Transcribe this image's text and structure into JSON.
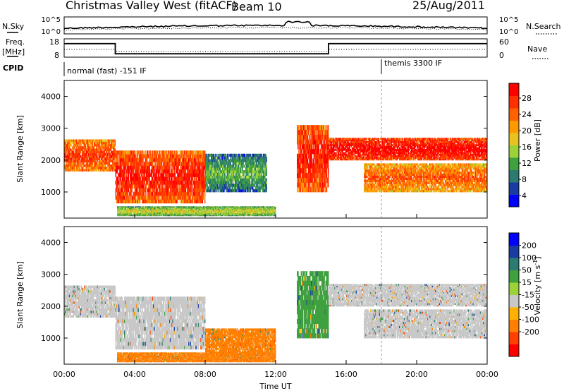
{
  "header": {
    "station": "Christmas Valley West (fitACF)",
    "beam": "Beam 10",
    "date": "25/Aug/2011"
  },
  "noise_panel": {
    "left_label": "N.Sky",
    "right_label": "N.Search",
    "left_ticks": [
      "10^5",
      "10^0"
    ],
    "right_ticks": [
      "10^5",
      "10^0"
    ]
  },
  "freq_panel": {
    "left_label": "Freq.",
    "left_unit": "[MHz]",
    "right_label": "Nave",
    "left_ticks": [
      "18",
      "8"
    ],
    "right_ticks": [
      "60",
      "0"
    ],
    "freq_steps": [
      {
        "start_hour": 0,
        "end_hour": 2.9,
        "freq_mhz": 16
      },
      {
        "start_hour": 2.9,
        "end_hour": 15.0,
        "freq_mhz": 10
      },
      {
        "start_hour": 15.0,
        "end_hour": 24,
        "freq_mhz": 16
      }
    ]
  },
  "cpid": {
    "label": "CPID",
    "modes": [
      {
        "start_hour": 0,
        "text": "normal (fast) -151 IF"
      },
      {
        "start_hour": 18,
        "text": "themis 3300 IF"
      }
    ]
  },
  "chart_data": [
    {
      "type": "heatmap",
      "name": "power",
      "ylabel": "Slant Range [km]",
      "xlabel": "Time UT",
      "x_ticks": [
        "00:00",
        "04:00",
        "08:00",
        "12:00",
        "16:00",
        "20:00",
        "00:00"
      ],
      "xlim_hours": [
        0,
        24
      ],
      "ylim_km": [
        180,
        4500
      ],
      "y_ticks": [
        1000,
        2000,
        3000,
        4000
      ],
      "colorbar": {
        "label": "Power [dB]",
        "ticks": [
          "28",
          "24",
          "20",
          "16",
          "12",
          "8",
          "4"
        ],
        "range": [
          0,
          30
        ],
        "colors": [
          "#0000ff",
          "#1a3ca0",
          "#2d7a70",
          "#3fa03f",
          "#9bd23a",
          "#e8c21e",
          "#ff9900",
          "#ff6000",
          "#ff3000",
          "#ff0000"
        ]
      },
      "regions": [
        {
          "t0": 0.0,
          "t1": 2.9,
          "r0": 1650,
          "r1": 2650,
          "value": 24
        },
        {
          "t0": 2.9,
          "t1": 8.0,
          "r0": 650,
          "r1": 2300,
          "value": 26
        },
        {
          "t0": 8.0,
          "t1": 11.5,
          "r0": 1000,
          "r1": 2200,
          "value": 10
        },
        {
          "t0": 13.2,
          "t1": 15.0,
          "r0": 1000,
          "r1": 3100,
          "value": 26
        },
        {
          "t0": 15.0,
          "t1": 24.0,
          "r0": 2000,
          "r1": 2700,
          "value": 28
        },
        {
          "t0": 17.0,
          "t1": 24.0,
          "r0": 1000,
          "r1": 1900,
          "value": 22
        },
        {
          "t0": 3.0,
          "t1": 12.0,
          "r0": 250,
          "r1": 550,
          "value": 14
        }
      ]
    },
    {
      "type": "heatmap",
      "name": "velocity",
      "ylabel": "Slant Range [km]",
      "xlabel": "Time UT",
      "x_ticks": [
        "00:00",
        "04:00",
        "08:00",
        "12:00",
        "16:00",
        "20:00",
        "00:00"
      ],
      "xlim_hours": [
        0,
        24
      ],
      "ylim_km": [
        180,
        4500
      ],
      "y_ticks": [
        1000,
        2000,
        3000,
        4000
      ],
      "colorbar": {
        "label": "Velocity [m s^-1]",
        "ticks": [
          "200",
          "100",
          "50",
          "15",
          "-15",
          "-50",
          "-100",
          "-200"
        ],
        "colors": [
          "#0000ff",
          "#1a3ca0",
          "#2d7a70",
          "#3fa03f",
          "#9bd23a",
          "#c8c8c8",
          "#ffb000",
          "#ff8000",
          "#ff4000",
          "#ff0000"
        ]
      },
      "regions": [
        {
          "t0": 0.0,
          "t1": 2.9,
          "r0": 1650,
          "r1": 2650,
          "value": 0
        },
        {
          "t0": 2.9,
          "t1": 8.0,
          "r0": 650,
          "r1": 2300,
          "value": 0
        },
        {
          "t0": 8.0,
          "t1": 12.0,
          "r0": 450,
          "r1": 1300,
          "value": -60
        },
        {
          "t0": 13.2,
          "t1": 15.0,
          "r0": 1000,
          "r1": 3100,
          "value": 25
        },
        {
          "t0": 15.0,
          "t1": 24.0,
          "r0": 2000,
          "r1": 2700,
          "value": 0
        },
        {
          "t0": 17.0,
          "t1": 24.0,
          "r0": 1000,
          "r1": 1900,
          "value": 0
        },
        {
          "t0": 3.0,
          "t1": 12.0,
          "r0": 250,
          "r1": 550,
          "value": -60
        }
      ]
    }
  ]
}
